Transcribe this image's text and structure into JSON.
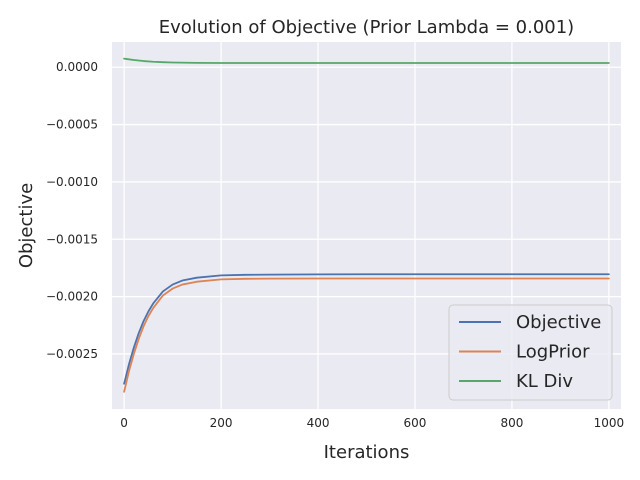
{
  "chart_data": {
    "type": "line",
    "title": "Evolution of Objective (Prior Lambda = 0.001)",
    "xlabel": "Iterations",
    "ylabel": "Objective",
    "xlim": [
      -25,
      1025
    ],
    "ylim": [
      -0.00298,
      0.00022
    ],
    "x_ticks": [
      0,
      200,
      400,
      600,
      800,
      1000
    ],
    "x_tick_labels": [
      "0",
      "200",
      "400",
      "600",
      "800",
      "1000"
    ],
    "y_ticks": [
      0.0,
      -0.0005,
      -0.001,
      -0.0015,
      -0.002,
      -0.0025
    ],
    "y_tick_labels": [
      "0.0000",
      "−0.0005",
      "−0.0010",
      "−0.0015",
      "−0.0020",
      "−0.0025"
    ],
    "grid": true,
    "legend_position": "lower-right",
    "background": "#eaeaf2",
    "series": [
      {
        "name": "Objective",
        "color": "#4c72b0",
        "x": [
          0,
          10,
          20,
          30,
          40,
          50,
          60,
          80,
          100,
          120,
          150,
          200,
          250,
          300,
          400,
          500,
          600,
          700,
          800,
          900,
          1000
        ],
        "y": [
          -0.00276,
          -0.00259,
          -0.002445,
          -0.00232,
          -0.002215,
          -0.00213,
          -0.00206,
          -0.001955,
          -0.001895,
          -0.00186,
          -0.001835,
          -0.001815,
          -0.00181,
          -0.001808,
          -0.001806,
          -0.001805,
          -0.001805,
          -0.001805,
          -0.001805,
          -0.001805,
          -0.001805
        ]
      },
      {
        "name": "LogPrior",
        "color": "#dd8452",
        "x": [
          0,
          10,
          20,
          30,
          40,
          50,
          60,
          80,
          100,
          120,
          150,
          200,
          250,
          300,
          400,
          500,
          600,
          700,
          800,
          900,
          1000
        ],
        "y": [
          -0.00283,
          -0.00265,
          -0.0025,
          -0.00237,
          -0.00226,
          -0.00217,
          -0.0021,
          -0.00199,
          -0.00193,
          -0.001895,
          -0.00187,
          -0.00185,
          -0.001845,
          -0.001843,
          -0.001842,
          -0.001842,
          -0.001842,
          -0.001842,
          -0.001842,
          -0.001842,
          -0.001842
        ]
      },
      {
        "name": "KL Div",
        "color": "#55a868",
        "x": [
          0,
          20,
          40,
          60,
          80,
          100,
          150,
          200,
          300,
          400,
          500,
          600,
          700,
          800,
          900,
          1000
        ],
        "y": [
          7.5e-05,
          6.3e-05,
          5.4e-05,
          4.8e-05,
          4.4e-05,
          4.1e-05,
          3.8e-05,
          3.7e-05,
          3.7e-05,
          3.7e-05,
          3.7e-05,
          3.7e-05,
          3.7e-05,
          3.7e-05,
          3.7e-05,
          3.7e-05
        ]
      }
    ]
  }
}
